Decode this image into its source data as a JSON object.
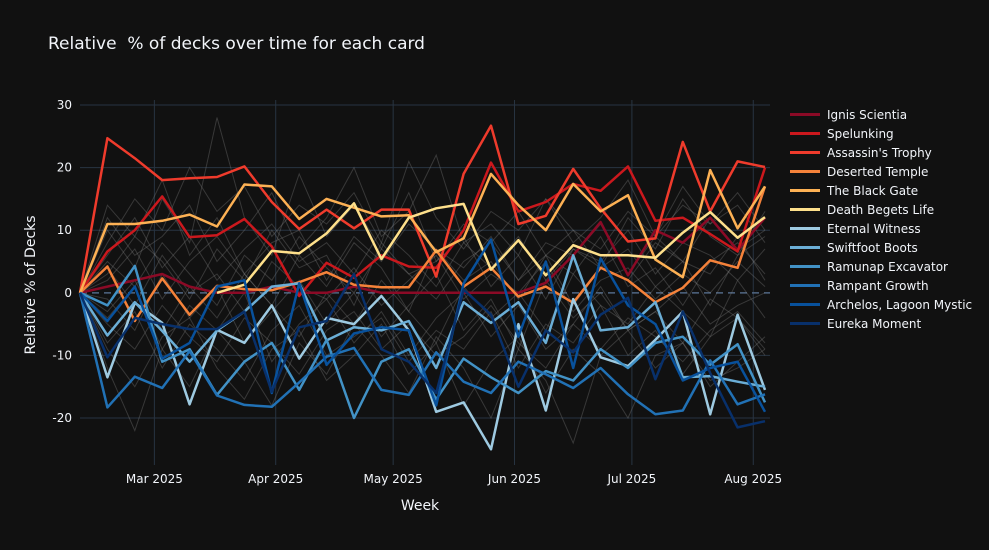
{
  "chart_data": {
    "type": "line",
    "title": "Relative  % of decks over time for each card",
    "xlabel": "Week",
    "ylabel": "Relative % of Decks",
    "x": [
      "2025-02-10",
      "2025-02-17",
      "2025-02-24",
      "2025-03-03",
      "2025-03-10",
      "2025-03-17",
      "2025-03-24",
      "2025-03-31",
      "2025-04-07",
      "2025-04-14",
      "2025-04-21",
      "2025-04-28",
      "2025-05-05",
      "2025-05-12",
      "2025-05-19",
      "2025-05-26",
      "2025-06-02",
      "2025-06-09",
      "2025-06-16",
      "2025-06-23",
      "2025-06-30",
      "2025-07-07",
      "2025-07-14",
      "2025-07-21",
      "2025-07-28",
      "2025-08-04"
    ],
    "x_ticks": [
      {
        "date": "2025-03-01",
        "label": "Mar 2025"
      },
      {
        "date": "2025-04-01",
        "label": "Apr 2025"
      },
      {
        "date": "2025-05-01",
        "label": "May 2025"
      },
      {
        "date": "2025-06-01",
        "label": "Jun 2025"
      },
      {
        "date": "2025-07-01",
        "label": "Jul 2025"
      },
      {
        "date": "2025-08-01",
        "label": "Aug 2025"
      }
    ],
    "y_ticks": [
      30,
      20,
      10,
      0,
      -10,
      -20
    ],
    "ylim": [
      -27.5,
      30.8
    ],
    "grid": true,
    "zero_line": "dashed",
    "legend_placement": "right",
    "background_color": "#111111",
    "grid_color": "#283442",
    "background_series_color": "#808080",
    "series": [
      {
        "name": "Ignis Scientia",
        "color": "#8b0a26",
        "values": [
          0,
          1,
          2,
          3,
          1,
          0,
          0,
          1,
          0,
          0,
          1,
          0,
          0,
          0,
          0,
          0,
          0,
          1.6,
          6,
          11.3,
          2.8,
          10,
          8,
          12,
          6.8,
          12
        ]
      },
      {
        "name": "Spelunking",
        "color": "#cb181d",
        "values": [
          0,
          6.6,
          10,
          15.4,
          8.9,
          9.2,
          11.8,
          7.4,
          -0.5,
          4.8,
          2.4,
          6,
          4.2,
          4,
          10,
          20.8,
          13,
          14.5,
          17.4,
          16.3,
          20.2,
          11.5,
          12,
          9.4,
          6.6,
          20
        ]
      },
      {
        "name": "Assassin's Trophy",
        "color": "#ef3b2c",
        "values": [
          0,
          24.7,
          21.5,
          18,
          18.3,
          18.5,
          20.2,
          14.5,
          10.2,
          13.3,
          10.3,
          13.3,
          13.3,
          2.6,
          19,
          26.7,
          11,
          12.3,
          19.8,
          13.5,
          8.2,
          8.7,
          24.1,
          13,
          21,
          20.1
        ]
      },
      {
        "name": "Deserted Temple",
        "color": "#f5823a",
        "values": [
          0,
          4.2,
          -4.5,
          2.3,
          -3.5,
          1.1,
          0.6,
          0.4,
          1.7,
          3.3,
          1.3,
          0.9,
          0.9,
          6.8,
          1,
          4,
          -0.6,
          1,
          -1.6,
          4,
          2,
          -1.5,
          0.8,
          5.2,
          4,
          17
        ]
      },
      {
        "name": "The Black Gate",
        "color": "#fdb154",
        "values": [
          0,
          11,
          11,
          11.5,
          12.5,
          10.6,
          17.3,
          17,
          11.8,
          15,
          13.6,
          12.2,
          12.4,
          6.5,
          8.7,
          19,
          14,
          10,
          17.4,
          13,
          15.6,
          5.3,
          2.5,
          19.6,
          10.3,
          17
        ]
      },
      {
        "name": "Death Begets Life",
        "color": "#fee08b",
        "values": [
          null,
          null,
          null,
          null,
          null,
          0,
          1.3,
          6.7,
          6.3,
          9.5,
          14.3,
          5.4,
          12,
          13.5,
          14.2,
          3.7,
          8.4,
          2.8,
          7.6,
          6,
          6,
          5.6,
          9.6,
          12.9,
          8.8,
          12.1
        ]
      },
      {
        "name": "Eternal Witness",
        "color": "#9ecae1",
        "values": [
          0,
          -13.5,
          -1.6,
          -4.8,
          -17.8,
          -5.9,
          -8,
          -2,
          -10.5,
          -4,
          -5,
          -0.5,
          -6,
          -19,
          -17.5,
          -25,
          -5,
          -18.8,
          -1,
          -10.3,
          -11.7,
          -7.5,
          -3,
          -19.4,
          -3.5,
          -15.5
        ]
      },
      {
        "name": "Swiftfoot Boots",
        "color": "#6baed6",
        "values": [
          0,
          -6.8,
          -1.5,
          -6.1,
          -11,
          -6,
          -3,
          1,
          1.5,
          -7.6,
          -5.5,
          -6,
          -4.5,
          -12,
          -1.5,
          -4.8,
          -1.5,
          -8,
          6,
          -6,
          -5.5,
          -1.5,
          -13.5,
          -13.3,
          -14.2,
          -15
        ]
      },
      {
        "name": "Ramunap Excavator",
        "color": "#4292c6",
        "values": [
          0,
          -2,
          4.3,
          -11,
          -9,
          -16.3,
          -11,
          -8,
          -15.5,
          -7.5,
          -20,
          -11,
          -9,
          -17,
          -10.5,
          -13.5,
          -16,
          -12.5,
          -14,
          -9,
          -12,
          -8,
          -7,
          -11.5,
          -8.2,
          -17.5
        ]
      },
      {
        "name": "Rampant Growth",
        "color": "#2171b5",
        "values": [
          0,
          -18.3,
          -13.4,
          -15.2,
          -9.3,
          -16.4,
          -17.9,
          -18.2,
          -14.3,
          -10.2,
          -8.8,
          -15.5,
          -16.3,
          -9.5,
          -14.2,
          -16,
          -11,
          -13,
          -15.2,
          -12,
          -16.2,
          -19.4,
          -18.8,
          -10.8,
          -17.8,
          -16.2
        ]
      },
      {
        "name": "Archelos, Lagoon Mystic",
        "color": "#08519c",
        "values": [
          0,
          -4.5,
          1,
          -10.5,
          -8,
          1,
          2,
          -16,
          1.5,
          -11.5,
          -6.5,
          -5.5,
          -6,
          -18,
          1.5,
          8.5,
          -7,
          5,
          -12,
          5.5,
          -2,
          -5,
          -14,
          -12,
          -11,
          -19
        ]
      },
      {
        "name": "Eureka Moment",
        "color": "#08306b",
        "values": [
          0,
          -10.3,
          -4,
          -5,
          -5.8,
          -5.8,
          -3,
          -15.8,
          -5.5,
          -4.5,
          3,
          -9,
          -11,
          -16,
          0.5,
          -3.5,
          -15,
          -6,
          -9.5,
          -3.5,
          -0.8,
          -13.8,
          -3,
          -12.8,
          -21.5,
          -20.5
        ]
      }
    ],
    "background_series": [
      [
        0,
        14,
        9,
        18,
        6,
        12,
        3,
        8,
        10,
        2,
        9,
        5,
        11,
        7,
        4,
        9,
        2,
        8,
        6,
        11,
        3,
        9,
        5,
        12,
        7,
        10
      ],
      [
        0,
        -8,
        -3,
        -12,
        -5,
        -9,
        -14,
        -6,
        -2,
        -10,
        -7,
        -4,
        -11,
        -6,
        -9,
        -3,
        -12,
        -5,
        -8,
        -2,
        -10,
        -6,
        -13,
        -7,
        -4,
        -9
      ],
      [
        0,
        6,
        12,
        4,
        9,
        2,
        7,
        11,
        5,
        8,
        3,
        10,
        6,
        1,
        8,
        4,
        9,
        2,
        7,
        5,
        10,
        3,
        8,
        6,
        2,
        7
      ],
      [
        0,
        -3,
        2,
        -6,
        1,
        -4,
        3,
        -2,
        -7,
        0,
        -5,
        2,
        -3,
        -8,
        1,
        -4,
        0,
        -6,
        3,
        -2,
        -5,
        1,
        -3,
        -7,
        2,
        -4
      ],
      [
        0,
        10,
        4,
        15,
        8,
        28,
        12,
        6,
        19,
        9,
        14,
        7,
        16,
        5,
        11,
        8,
        13,
        6,
        10,
        4,
        12,
        7,
        15,
        9,
        6,
        13
      ],
      [
        0,
        -12,
        -22,
        -9,
        -15,
        -6,
        -11,
        -18,
        -8,
        -13,
        -5,
        -10,
        -16,
        -7,
        -12,
        -20,
        -9,
        -14,
        -24,
        -10,
        -6,
        -12,
        -8,
        -15,
        -11,
        -7
      ],
      [
        0,
        4,
        -2,
        6,
        0,
        3,
        -3,
        5,
        1,
        -1,
        4,
        -2,
        2,
        6,
        -1,
        3,
        0,
        5,
        -3,
        2,
        4,
        -1,
        3,
        0,
        5,
        1
      ],
      [
        0,
        8,
        15,
        10,
        20,
        13,
        17,
        9,
        14,
        11,
        16,
        8,
        21,
        12,
        7,
        13,
        10,
        15,
        8,
        12,
        18,
        9,
        14,
        11,
        16,
        10
      ],
      [
        0,
        -5,
        -9,
        -2,
        -7,
        -11,
        -4,
        -8,
        -13,
        -6,
        -3,
        -9,
        -5,
        -10,
        -7,
        -2,
        -8,
        -12,
        -5,
        -9,
        -4,
        -7,
        -11,
        -6,
        -3,
        -8
      ],
      [
        0,
        2,
        7,
        -1,
        5,
        9,
        3,
        -2,
        6,
        1,
        8,
        4,
        -3,
        7,
        2,
        5,
        -1,
        6,
        3,
        9,
        1,
        4,
        -2,
        5,
        8,
        3
      ],
      [
        0,
        -1,
        -6,
        3,
        -4,
        1,
        -8,
        -3,
        2,
        -5,
        0,
        -7,
        -2,
        3,
        -6,
        -1,
        -9,
        2,
        -4,
        0,
        -6,
        -3,
        1,
        -5,
        -2,
        0
      ],
      [
        0,
        12,
        6,
        9,
        14,
        5,
        10,
        16,
        7,
        12,
        20,
        9,
        13,
        22,
        8,
        11,
        6,
        15,
        10,
        7,
        13,
        9,
        17,
        11,
        14,
        8
      ],
      [
        0,
        -9,
        -15,
        -7,
        -4,
        -12,
        -17,
        -9,
        -6,
        -14,
        -10,
        -5,
        -13,
        -8,
        -18,
        -11,
        -7,
        -16,
        -9,
        -13,
        -20,
        -10,
        -8,
        -14,
        -12,
        -9
      ],
      [
        0,
        3,
        9,
        5,
        -1,
        7,
        2,
        10,
        4,
        6,
        -2,
        8,
        3,
        5,
        9,
        1,
        6,
        -1,
        7,
        4,
        2,
        8,
        5,
        -2,
        6,
        9
      ],
      [
        0,
        -4,
        1,
        -9,
        -2,
        -6,
        0,
        -11,
        -5,
        -1,
        -8,
        -3,
        -10,
        -4,
        0,
        -7,
        -2,
        -9,
        -5,
        1,
        -6,
        -3,
        -8,
        -1,
        -4,
        -10
      ],
      [
        0,
        5,
        1,
        8,
        3,
        -2,
        6,
        2,
        9,
        4,
        0,
        7,
        3,
        -1,
        5,
        8,
        2,
        6,
        -2,
        4,
        7,
        1,
        5,
        3,
        9,
        2
      ]
    ]
  }
}
